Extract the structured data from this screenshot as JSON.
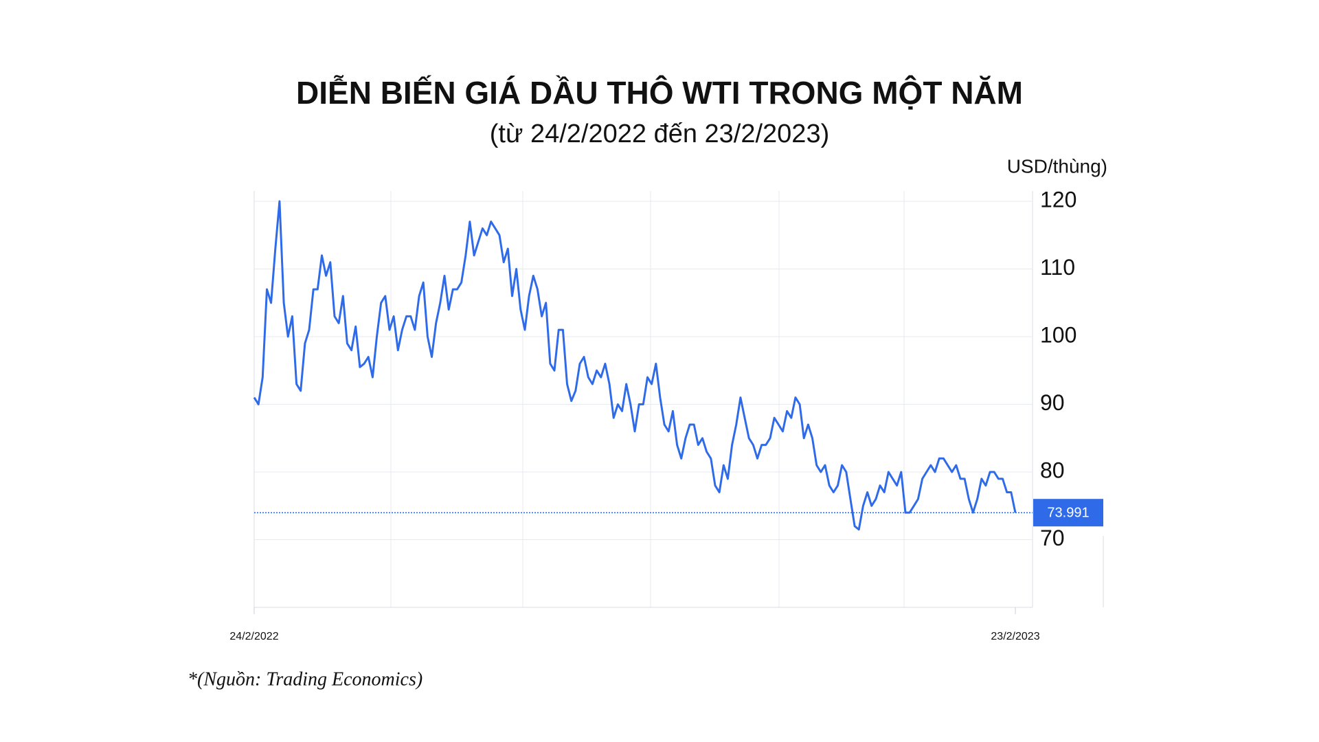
{
  "chart_data": {
    "type": "line",
    "title": "DIỄN BIẾN GIÁ DẦU THÔ WTI TRONG MỘT NĂM",
    "subtitle": "(từ 24/2/2022 đến 23/2/2023)",
    "y_axis_label": "USD/thùng)",
    "source": "*(Nguồn: Trading Economics)",
    "categories": [
      "24/2/2022",
      null,
      null,
      null,
      null,
      null,
      null,
      null,
      null,
      null,
      null,
      null,
      null,
      null,
      null,
      null,
      null,
      null,
      null,
      null,
      null,
      null,
      null,
      null,
      null,
      null,
      null,
      null,
      null,
      null,
      null,
      null,
      null,
      null,
      null,
      null,
      null,
      null,
      null,
      null,
      null,
      null,
      null,
      null,
      null,
      null,
      null,
      null,
      null,
      null,
      null,
      null,
      null,
      null,
      null,
      null,
      null,
      null,
      null,
      null,
      null,
      null,
      null,
      null,
      null,
      null,
      null,
      null,
      null,
      null,
      null,
      null,
      null,
      null,
      null,
      null,
      null,
      null,
      null,
      null,
      null,
      null,
      null,
      null,
      null,
      null,
      null,
      null,
      null,
      null,
      null,
      null,
      null,
      null,
      null,
      null,
      null,
      null,
      null,
      null,
      null,
      null,
      null,
      null,
      null,
      null,
      null,
      null,
      null,
      null,
      null,
      null,
      null,
      null,
      null,
      null,
      null,
      null,
      null,
      null,
      null,
      null,
      null,
      null,
      null,
      null,
      null,
      null,
      null,
      null,
      null,
      null,
      null,
      null,
      null,
      null,
      null,
      null,
      null,
      null,
      null,
      null,
      null,
      null,
      null,
      null,
      null,
      null,
      null,
      null,
      null,
      null,
      null,
      null,
      null,
      null,
      null,
      null,
      null,
      null,
      null,
      null,
      null,
      null,
      null,
      null,
      null,
      null,
      null,
      null,
      null,
      null,
      null,
      null,
      null,
      null,
      null,
      null,
      null,
      null,
      "23/2/2023"
    ],
    "series": [
      {
        "name": "WTI",
        "color": "#2f6be8",
        "values": [
          91,
          90,
          94,
          107,
          105,
          113,
          120,
          105,
          100,
          103,
          93,
          92,
          99,
          101,
          107,
          107,
          112,
          109,
          111,
          103,
          102,
          106,
          99,
          98,
          101.5,
          95.5,
          96,
          97,
          94,
          100,
          105,
          106,
          101,
          103,
          98,
          101,
          103,
          103,
          101,
          106,
          108,
          100,
          97,
          102,
          105,
          109,
          104,
          107,
          107,
          108,
          112,
          117,
          112,
          114,
          116,
          115,
          117,
          116,
          115,
          111,
          113,
          106,
          110,
          104,
          101,
          106,
          109,
          107,
          103,
          105,
          96,
          95,
          101,
          101,
          93,
          90.5,
          92,
          96,
          97,
          94,
          93,
          95,
          94,
          96,
          93,
          88,
          90,
          89,
          93,
          90,
          86,
          90,
          90,
          94,
          93,
          96,
          91,
          87,
          86,
          89,
          84,
          82,
          85,
          87,
          87,
          84,
          85,
          83,
          82,
          78,
          77,
          81,
          79,
          84,
          87,
          91,
          88,
          85,
          84,
          82,
          84,
          84,
          85,
          88,
          87,
          86,
          89,
          88,
          91,
          90,
          85,
          87,
          85,
          81,
          80,
          81,
          78,
          77,
          78,
          81,
          80,
          76,
          72,
          71.5,
          75,
          77,
          75,
          76,
          78,
          77,
          80,
          79,
          78,
          80,
          74,
          74,
          75,
          76,
          79,
          80,
          81,
          80,
          82,
          82,
          81,
          80,
          81,
          79,
          79,
          76,
          74,
          76,
          79,
          78,
          80,
          80,
          79,
          79,
          77,
          77,
          73.991
        ]
      }
    ],
    "ylim": [
      60,
      120
    ],
    "yticks": [
      70,
      80,
      90,
      100,
      110,
      120
    ],
    "grid": true
  }
}
